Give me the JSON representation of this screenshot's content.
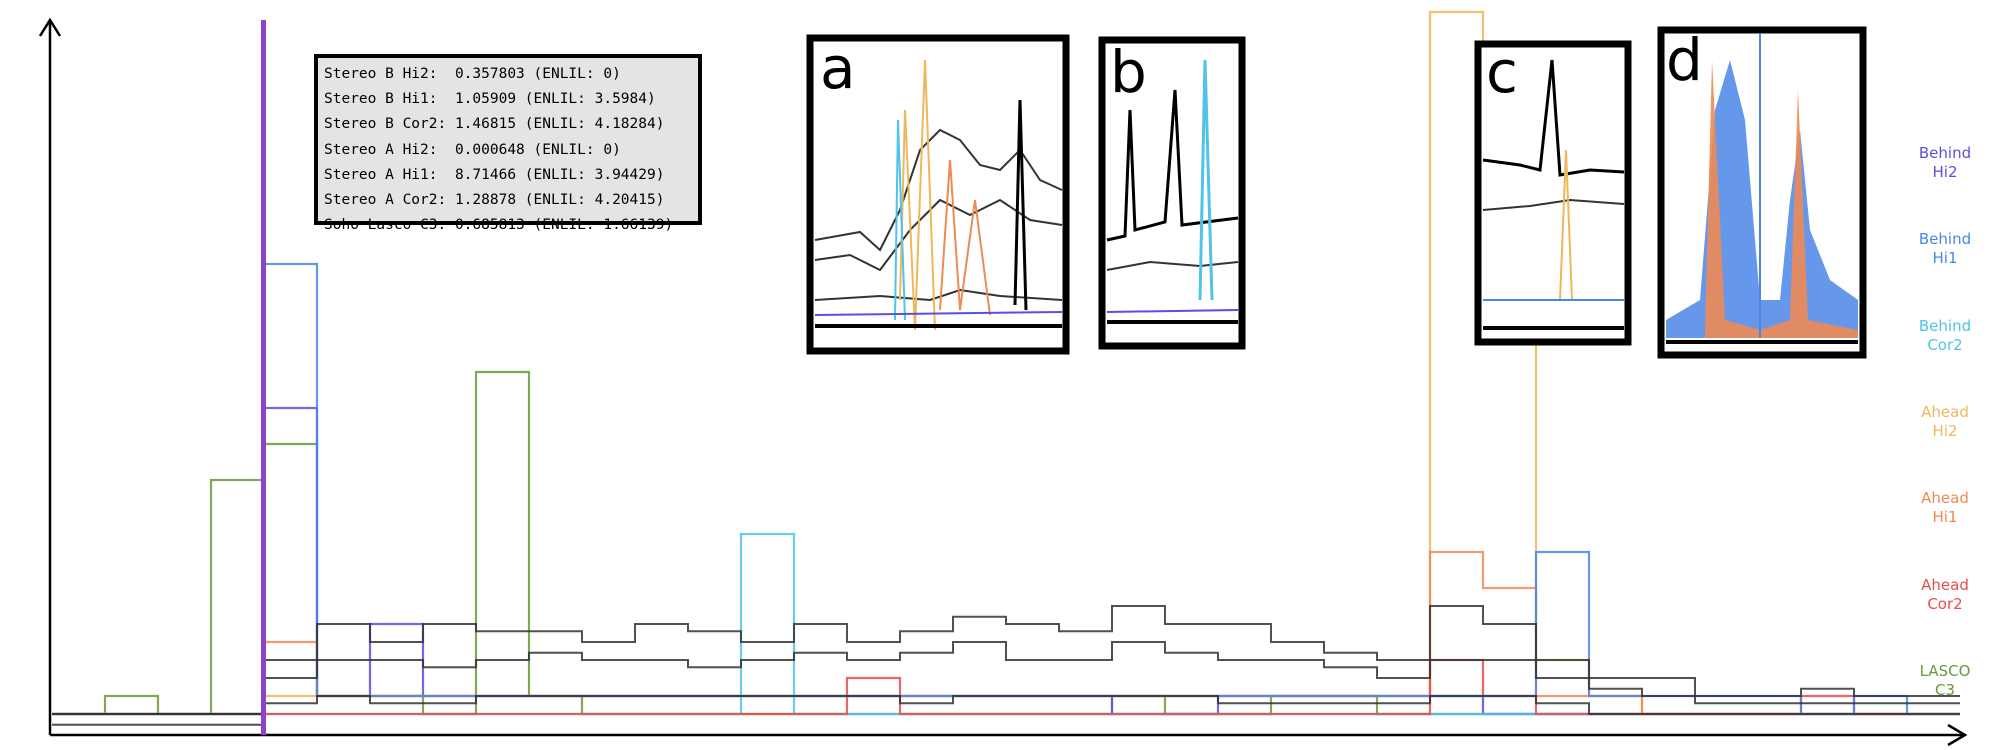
{
  "readout": {
    "rows": [
      "Stereo B Hi2:  0.357803 (ENLIL: 0)",
      "Stereo B Hi1:  1.05909 (ENLIL: 3.5984)",
      "Stereo B Cor2: 1.46815 (ENLIL: 4.18284)",
      "Stereo A Hi2:  0.000648 (ENLIL: 0)",
      "Stereo A Hi1:  8.71466 (ENLIL: 3.94429)",
      "Stereo A Cor2: 1.28878 (ENLIL: 4.20415)",
      "Soho Lasco C3: 0.685813 (ENLIL: 1.66139)"
    ]
  },
  "legend": [
    {
      "line1": "Behind",
      "line2": "Hi2",
      "color": "#5b4fe0"
    },
    {
      "line1": "Behind",
      "line2": "Hi1",
      "color": "#4a86e8"
    },
    {
      "line1": "Behind",
      "line2": "Cor2",
      "color": "#4fc3e8"
    },
    {
      "line1": "Ahead",
      "line2": "Hi2",
      "color": "#f0b65a"
    },
    {
      "line1": "Ahead",
      "line2": "Hi1",
      "color": "#ee8a55"
    },
    {
      "line1": "Ahead",
      "line2": "Cor2",
      "color": "#e84c4c"
    },
    {
      "line1": "LASCO",
      "line2": "C3",
      "color": "#6a9a3a"
    }
  ],
  "insets": [
    {
      "label": "a"
    },
    {
      "label": "b"
    },
    {
      "label": "c"
    },
    {
      "label": "d"
    }
  ],
  "chart_data": {
    "type": "line",
    "title": "",
    "xlabel": "",
    "ylabel": "",
    "grid": false,
    "legend_placement": "right",
    "cursor_color": "#8e44c4",
    "series": [
      {
        "color": "#6a9a3a",
        "values": [
          0.05,
          0.1,
          0.05,
          0.7,
          0.8,
          0.1,
          0.1,
          0.05,
          1.0,
          0.1,
          0.05,
          0.05,
          0.05,
          0.05,
          0.05,
          0.05,
          0.05,
          0.05,
          0.05,
          0.05,
          0.1,
          0.05,
          0.05,
          0.1,
          0.1,
          0.05,
          0.05,
          0.05,
          0.05,
          0.05,
          0.05,
          0.05,
          0.05,
          0.05,
          0.05,
          0.05
        ]
      },
      {
        "color": "#5b4fe0",
        "values": [
          0.05,
          0.05,
          0.05,
          0.05,
          0.9,
          0.1,
          0.3,
          0.1,
          0.1,
          0.1,
          0.1,
          0.1,
          0.1,
          0.1,
          0.1,
          0.1,
          0.1,
          0.1,
          0.1,
          0.1,
          0.05,
          0.05,
          0.1,
          0.1,
          0.1,
          0.1,
          0.1,
          0.05,
          0.05,
          0.05,
          0.05,
          0.05,
          0.05,
          0.05,
          0.05,
          0.05
        ]
      },
      {
        "color": "#4fc3e8",
        "values": [
          0.05,
          0.05,
          0.05,
          0.05,
          0.05,
          0.05,
          0.05,
          0.05,
          0.05,
          0.05,
          0.05,
          0.05,
          0.05,
          0.55,
          0.05,
          0.05,
          0.05,
          0.05,
          0.05,
          0.05,
          0.05,
          0.05,
          0.05,
          0.05,
          0.05,
          0.05,
          0.05,
          0.05,
          0.05,
          0.05,
          0.05,
          0.05,
          0.05,
          0.05,
          0.05,
          0.05
        ]
      },
      {
        "color": "#f0b65a",
        "values": [
          0.05,
          0.05,
          0.05,
          0.05,
          0.1,
          0.1,
          0.1,
          0.1,
          0.1,
          0.1,
          0.1,
          0.1,
          0.1,
          0.1,
          0.1,
          0.1,
          0.1,
          0.1,
          0.1,
          0.1,
          0.1,
          0.1,
          0.1,
          0.1,
          0.1,
          0.1,
          2.0,
          1.6,
          0.2,
          0.1,
          0.05,
          0.05,
          0.05,
          0.05,
          0.05,
          0.05
        ]
      },
      {
        "color": "#ee8a55",
        "values": [
          0.05,
          0.05,
          0.05,
          0.05,
          0.25,
          0.1,
          0.1,
          0.1,
          0.1,
          0.1,
          0.1,
          0.1,
          0.1,
          0.1,
          0.1,
          0.1,
          0.1,
          0.1,
          0.1,
          0.1,
          0.1,
          0.1,
          0.1,
          0.1,
          0.1,
          0.1,
          0.5,
          0.4,
          0.1,
          0.1,
          0.05,
          0.05,
          0.05,
          0.05,
          0.05,
          0.05
        ]
      },
      {
        "color": "#e84c4c",
        "values": [
          0.05,
          0.05,
          0.05,
          0.05,
          0.05,
          0.05,
          0.05,
          0.05,
          0.05,
          0.05,
          0.05,
          0.05,
          0.05,
          0.05,
          0.05,
          0.15,
          0.05,
          0.05,
          0.05,
          0.05,
          0.05,
          0.05,
          0.05,
          0.05,
          0.05,
          0.05,
          0.2,
          0.1,
          0.05,
          0.05,
          0.05,
          0.05,
          0.05,
          0.1,
          0.05,
          0.05
        ]
      },
      {
        "color": "#4a86e8",
        "values": [
          0.05,
          0.05,
          0.05,
          0.05,
          1.3,
          0.1,
          0.1,
          0.1,
          0.1,
          0.1,
          0.1,
          0.1,
          0.1,
          0.1,
          0.1,
          0.1,
          0.1,
          0.1,
          0.1,
          0.1,
          0.1,
          0.1,
          0.1,
          0.1,
          0.1,
          0.1,
          0.1,
          0.1,
          0.5,
          0.1,
          0.1,
          0.1,
          0.1,
          0.05,
          0.1,
          0.05
        ]
      },
      {
        "color": "#333333",
        "values": [
          0.05,
          0.05,
          0.05,
          0.05,
          0.2,
          0.3,
          0.25,
          0.3,
          0.28,
          0.28,
          0.25,
          0.3,
          0.28,
          0.25,
          0.3,
          0.25,
          0.28,
          0.32,
          0.3,
          0.28,
          0.35,
          0.3,
          0.3,
          0.25,
          0.22,
          0.2,
          0.35,
          0.3,
          0.2,
          0.15,
          0.15,
          0.1,
          0.1,
          0.12,
          0.1,
          0.1
        ]
      },
      {
        "color": "#333333",
        "values": [
          0.05,
          0.05,
          0.05,
          0.05,
          0.15,
          0.2,
          0.2,
          0.18,
          0.2,
          0.22,
          0.2,
          0.2,
          0.18,
          0.2,
          0.22,
          0.2,
          0.22,
          0.25,
          0.2,
          0.2,
          0.25,
          0.22,
          0.2,
          0.2,
          0.18,
          0.15,
          0.2,
          0.2,
          0.15,
          0.12,
          0.1,
          0.08,
          0.08,
          0.08,
          0.08,
          0.08
        ]
      },
      {
        "color": "#333333",
        "values": [
          0.02,
          0.02,
          0.02,
          0.02,
          0.08,
          0.1,
          0.08,
          0.08,
          0.1,
          0.1,
          0.1,
          0.1,
          0.1,
          0.1,
          0.1,
          0.1,
          0.08,
          0.1,
          0.1,
          0.1,
          0.1,
          0.1,
          0.08,
          0.08,
          0.08,
          0.08,
          0.1,
          0.1,
          0.08,
          0.05,
          0.05,
          0.05,
          0.05,
          0.05,
          0.05,
          0.05
        ]
      }
    ]
  }
}
